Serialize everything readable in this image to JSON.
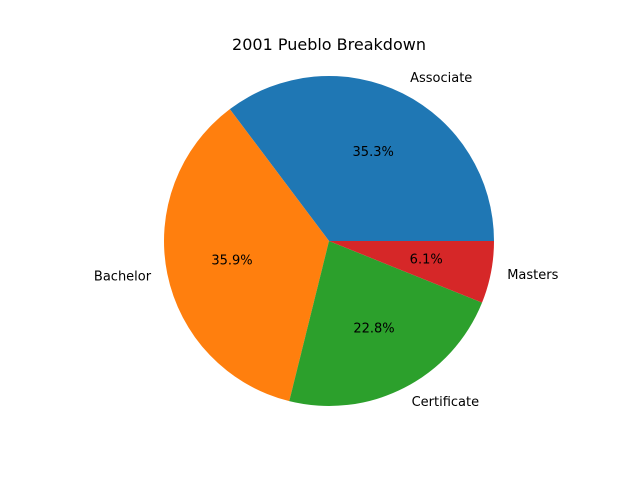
{
  "chart_data": {
    "type": "pie",
    "title": "2001 Pueblo Breakdown",
    "start_angle_deg": 0,
    "direction": "counterclockwise",
    "legend": "none",
    "slices": [
      {
        "label": "Associate",
        "value": 35.3,
        "pct_label": "35.3%",
        "color": "#1f77b4"
      },
      {
        "label": "Bachelor",
        "value": 35.9,
        "pct_label": "35.9%",
        "color": "#ff7f0e"
      },
      {
        "label": "Certificate",
        "value": 22.8,
        "pct_label": "22.8%",
        "color": "#2ca02c"
      },
      {
        "label": "Masters",
        "value": 6.1,
        "pct_label": "6.1%",
        "color": "#d62728"
      }
    ]
  }
}
